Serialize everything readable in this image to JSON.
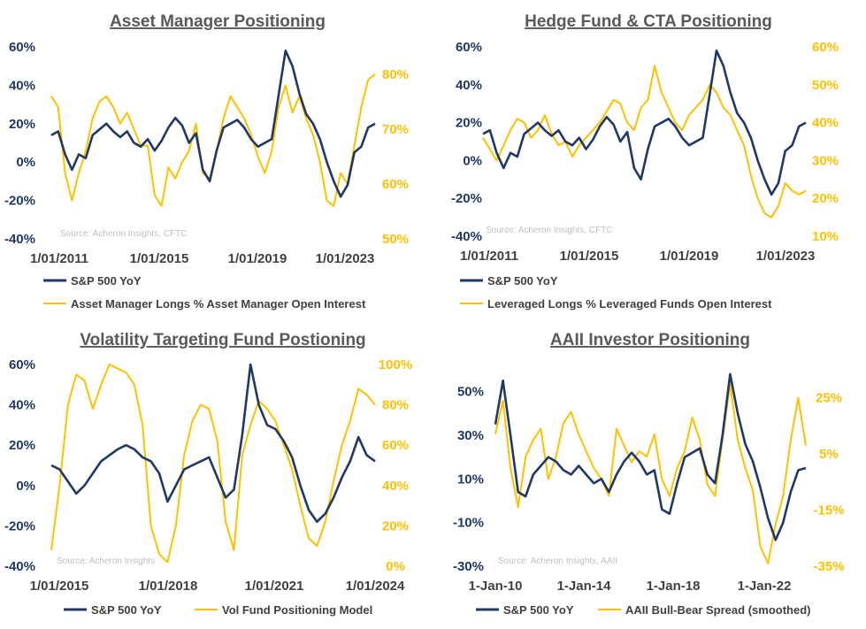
{
  "colors": {
    "navy": "#1f3864",
    "gold": "#ffc000",
    "text": "#404040",
    "title": "#595959",
    "source": "#bfbfbf"
  },
  "chart_data": [
    {
      "type": "line",
      "title": "Asset Manager Positioning",
      "source": "Source: Acheron Insights, CFTC",
      "x_labels": [
        "1/01/2011",
        "1/01/2015",
        "1/01/2019",
        "1/01/2023"
      ],
      "y_left_ticks": [
        "60%",
        "40%",
        "20%",
        "0%",
        "-20%",
        "-40%"
      ],
      "y_left_range": [
        -40,
        60
      ],
      "y_right_ticks": [
        "80%",
        "70%",
        "60%",
        "50%"
      ],
      "y_right_range": [
        50,
        85
      ],
      "series": [
        {
          "name": "S&P 500 YoY",
          "axis": "left",
          "values": [
            14,
            16,
            4,
            -4,
            4,
            2,
            14,
            17,
            20,
            16,
            13,
            16,
            10,
            8,
            12,
            6,
            11,
            18,
            23,
            19,
            10,
            15,
            -4,
            -10,
            6,
            18,
            20,
            22,
            18,
            12,
            8,
            10,
            12,
            35,
            58,
            50,
            36,
            25,
            20,
            12,
            0,
            -10,
            -18,
            -12,
            5,
            8,
            18,
            20
          ]
        },
        {
          "name": "Asset Manager Longs % Asset Manager Open Interest",
          "axis": "right",
          "values": [
            76,
            74,
            62,
            57,
            62,
            66,
            72,
            75,
            76,
            74,
            71,
            73,
            70,
            67,
            67,
            58,
            56,
            63,
            61,
            64,
            66,
            71,
            62,
            61,
            66,
            72,
            76,
            74,
            72,
            69,
            65,
            62,
            66,
            74,
            78,
            73,
            76,
            72,
            69,
            64,
            57,
            56,
            62,
            60,
            67,
            74,
            79,
            80
          ]
        }
      ]
    },
    {
      "type": "line",
      "title": "Hedge Fund & CTA Positioning",
      "source": "Source: Acheron Insights, CFTC",
      "x_labels": [
        "1/01/2011",
        "1/01/2015",
        "1/01/2019",
        "1/01/2023"
      ],
      "y_left_ticks": [
        "60%",
        "40%",
        "20%",
        "0%",
        "-20%",
        "-40%"
      ],
      "y_left_range": [
        -40,
        60
      ],
      "y_right_ticks": [
        "60%",
        "50%",
        "40%",
        "30%",
        "20%",
        "10%"
      ],
      "y_right_range": [
        10,
        60
      ],
      "series": [
        {
          "name": "S&P 500 YoY",
          "axis": "left",
          "values": [
            14,
            16,
            4,
            -4,
            4,
            2,
            14,
            17,
            20,
            16,
            13,
            16,
            10,
            8,
            12,
            6,
            11,
            18,
            23,
            19,
            10,
            15,
            -4,
            -10,
            6,
            18,
            20,
            22,
            18,
            12,
            8,
            10,
            12,
            35,
            58,
            50,
            36,
            25,
            20,
            12,
            0,
            -10,
            -18,
            -12,
            5,
            8,
            18,
            20
          ]
        },
        {
          "name": "Leveraged Longs % Leveraged Funds Open Interest",
          "axis": "right",
          "values": [
            36,
            33,
            30,
            34,
            38,
            41,
            40,
            36,
            38,
            42,
            37,
            34,
            35,
            31,
            34,
            36,
            38,
            40,
            43,
            46,
            45,
            40,
            38,
            44,
            46,
            55,
            48,
            44,
            40,
            38,
            42,
            44,
            46,
            50,
            48,
            44,
            42,
            38,
            34,
            26,
            20,
            16,
            15,
            18,
            24,
            22,
            21,
            22
          ]
        }
      ]
    },
    {
      "type": "line",
      "title": "Volatility Targeting Fund Postioning",
      "source": "Source: Acheron Insights",
      "x_labels": [
        "1/01/2015",
        "1/01/2018",
        "1/01/2021",
        "1/01/2024"
      ],
      "y_left_ticks": [
        "60%",
        "40%",
        "20%",
        "0%",
        "-20%",
        "-40%"
      ],
      "y_left_range": [
        -40,
        60
      ],
      "y_right_ticks": [
        "100%",
        "80%",
        "60%",
        "40%",
        "20%",
        "0%"
      ],
      "y_right_range": [
        0,
        100
      ],
      "series": [
        {
          "name": "S&P 500 YoY",
          "axis": "left",
          "values": [
            10,
            8,
            2,
            -4,
            0,
            6,
            12,
            15,
            18,
            20,
            18,
            14,
            12,
            6,
            -8,
            0,
            8,
            10,
            12,
            14,
            4,
            -6,
            -2,
            25,
            60,
            40,
            30,
            28,
            22,
            14,
            0,
            -12,
            -18,
            -14,
            -6,
            4,
            12,
            24,
            15,
            12
          ]
        },
        {
          "name": "Vol Fund Positioning Model",
          "axis": "right",
          "values": [
            8,
            40,
            80,
            95,
            92,
            78,
            90,
            100,
            98,
            96,
            90,
            70,
            20,
            6,
            2,
            20,
            55,
            72,
            80,
            78,
            62,
            22,
            8,
            55,
            70,
            82,
            78,
            72,
            60,
            48,
            30,
            14,
            10,
            22,
            42,
            60,
            72,
            88,
            85,
            80
          ]
        }
      ]
    },
    {
      "type": "line",
      "title": "AAII Investor Positioning",
      "source": "Source: Acheron Insights, AAII",
      "x_labels": [
        "1-Jan-10",
        "1-Jan-14",
        "1-Jan-18",
        "1-Jan-22"
      ],
      "y_left_ticks": [
        "50%",
        "30%",
        "10%",
        "-10%",
        "-30%"
      ],
      "y_left_range": [
        -30,
        60
      ],
      "y_right_ticks": [
        "25%",
        "5%",
        "-15%",
        "-35%"
      ],
      "y_right_range": [
        -35,
        35
      ],
      "series": [
        {
          "name": "S&P 500 YoY",
          "axis": "left",
          "values": [
            35,
            55,
            30,
            4,
            2,
            12,
            16,
            20,
            18,
            14,
            12,
            16,
            12,
            8,
            10,
            4,
            12,
            18,
            22,
            18,
            12,
            14,
            -4,
            -6,
            8,
            20,
            22,
            24,
            12,
            8,
            30,
            58,
            40,
            26,
            18,
            6,
            -8,
            -18,
            -10,
            4,
            14,
            15
          ]
        },
        {
          "name": "AAII Bull-Bear Spread (smoothed)",
          "axis": "right",
          "values": [
            12,
            24,
            0,
            -14,
            4,
            10,
            14,
            -4,
            4,
            16,
            20,
            12,
            6,
            0,
            -4,
            -10,
            14,
            8,
            2,
            6,
            4,
            12,
            -4,
            -10,
            0,
            6,
            18,
            10,
            -6,
            -10,
            10,
            30,
            10,
            0,
            -8,
            -28,
            -34,
            -20,
            -10,
            10,
            25,
            8
          ]
        }
      ]
    }
  ]
}
